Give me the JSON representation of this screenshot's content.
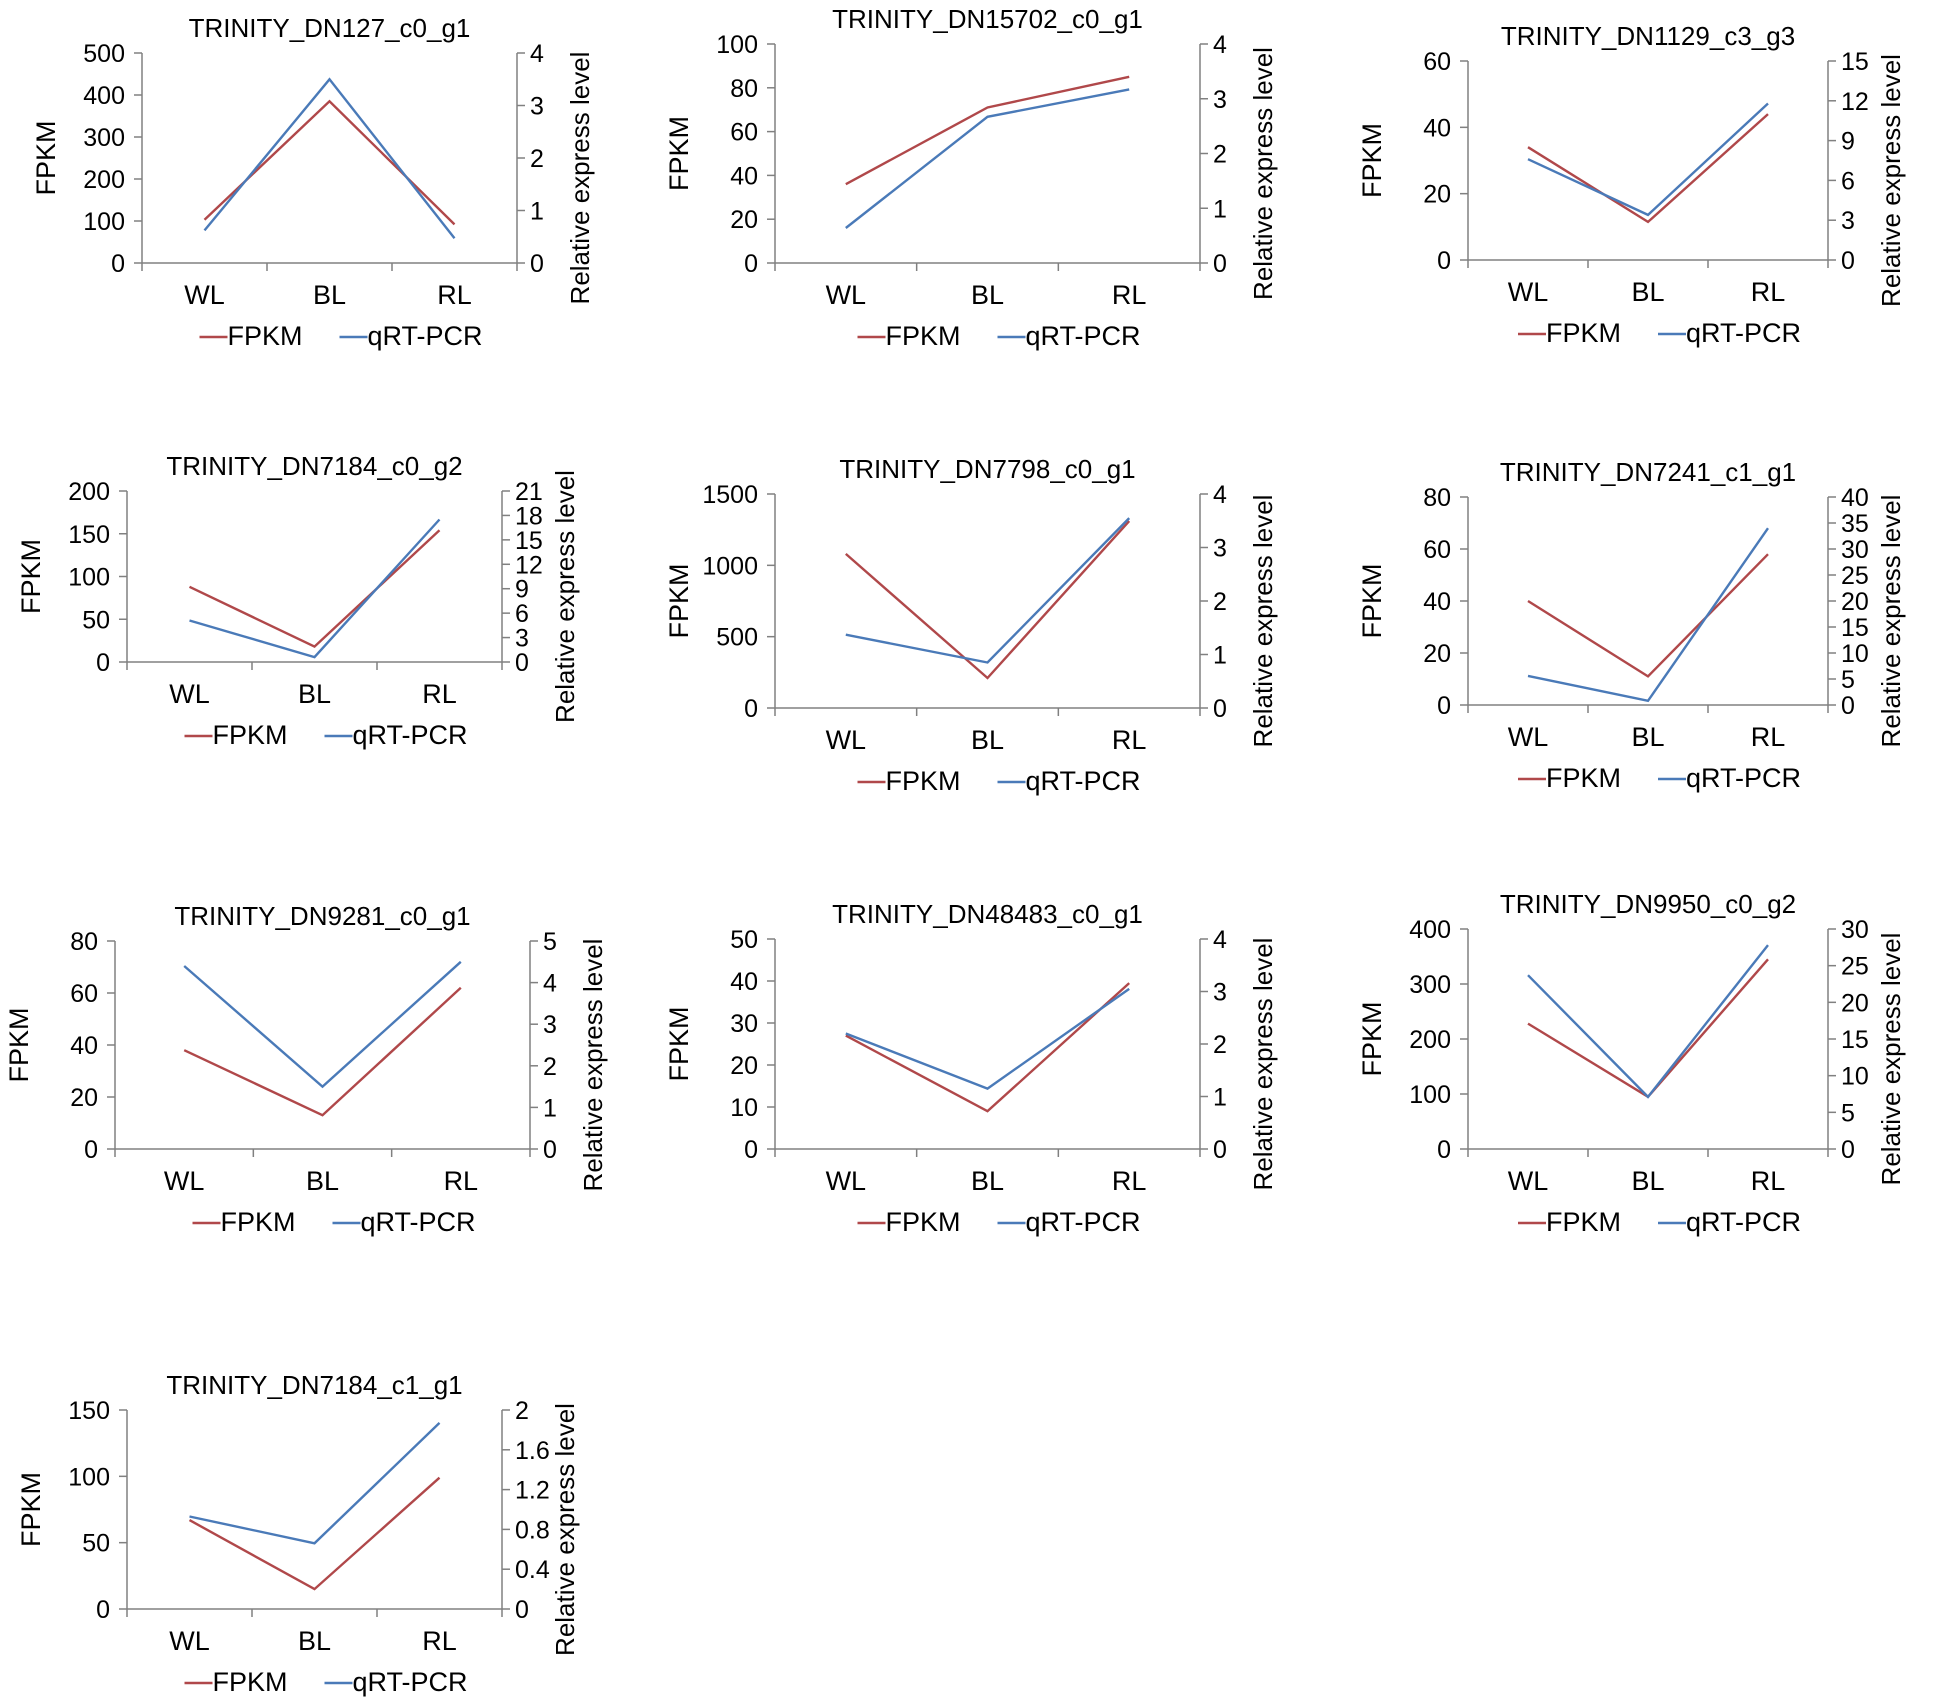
{
  "figure": {
    "colors": {
      "fpkm": "#B0484A",
      "qrt": "#4A7AB8",
      "axis": "#808080",
      "text": "#000000"
    }
  },
  "chart_data": [
    {
      "type": "line",
      "title": "TRINITY_DN127_c0_g1",
      "categories": [
        "WL",
        "BL",
        "RL"
      ],
      "ylabel": "FPKM",
      "y2label": "Relative express level",
      "ylim": [
        0,
        500
      ],
      "yticks": [
        0,
        100,
        200,
        300,
        400,
        500
      ],
      "y2lim": [
        0,
        4
      ],
      "y2ticks": [
        0,
        1,
        2,
        3,
        4
      ],
      "series": [
        {
          "name": "FPKM",
          "axis": "left",
          "values": [
            103,
            385,
            92
          ]
        },
        {
          "name": "qRT-PCR",
          "axis": "right",
          "values": [
            0.62,
            3.5,
            0.47
          ]
        }
      ]
    },
    {
      "type": "line",
      "title": "TRINITY_DN15702_c0_g1",
      "categories": [
        "WL",
        "BL",
        "RL"
      ],
      "ylabel": "FPKM",
      "y2label": "Relative express level",
      "ylim": [
        0,
        100
      ],
      "yticks": [
        0,
        20,
        40,
        60,
        80,
        100
      ],
      "y2lim": [
        0,
        4
      ],
      "y2ticks": [
        0,
        1,
        2,
        3,
        4
      ],
      "series": [
        {
          "name": "FPKM",
          "axis": "left",
          "values": [
            36,
            71,
            85
          ]
        },
        {
          "name": "qRT-PCR",
          "axis": "right",
          "values": [
            0.64,
            2.67,
            3.17
          ]
        }
      ]
    },
    {
      "type": "line",
      "title": "TRINITY_DN1129_c3_g3",
      "categories": [
        "WL",
        "BL",
        "RL"
      ],
      "ylabel": "FPKM",
      "y2label": "Relative express level",
      "ylim": [
        0,
        60
      ],
      "yticks": [
        0,
        20,
        40,
        60
      ],
      "y2lim": [
        0,
        15
      ],
      "y2ticks": [
        0,
        3,
        6,
        9,
        12,
        15
      ],
      "series": [
        {
          "name": "FPKM",
          "axis": "left",
          "values": [
            34,
            11.5,
            44
          ]
        },
        {
          "name": "qRT-PCR",
          "axis": "right",
          "values": [
            7.6,
            3.4,
            11.8
          ]
        }
      ]
    },
    {
      "type": "line",
      "title": "TRINITY_DN7184_c0_g2",
      "categories": [
        "WL",
        "BL",
        "RL"
      ],
      "ylabel": "FPKM",
      "y2label": "Relative express level",
      "ylim": [
        0,
        200
      ],
      "yticks": [
        0,
        50,
        100,
        150,
        200
      ],
      "y2lim": [
        0,
        21
      ],
      "y2ticks": [
        0,
        3,
        6,
        9,
        12,
        15,
        18,
        21
      ],
      "series": [
        {
          "name": "FPKM",
          "axis": "left",
          "values": [
            88,
            18,
            154
          ]
        },
        {
          "name": "qRT-PCR",
          "axis": "right",
          "values": [
            5.1,
            0.6,
            17.5
          ]
        }
      ]
    },
    {
      "type": "line",
      "title": "TRINITY_DN7798_c0_g1",
      "categories": [
        "WL",
        "BL",
        "RL"
      ],
      "ylabel": "FPKM",
      "y2label": "Relative express level",
      "ylim": [
        0,
        1500
      ],
      "yticks": [
        0,
        500,
        1000,
        1500
      ],
      "y2lim": [
        0,
        4
      ],
      "y2ticks": [
        0,
        1,
        2,
        3,
        4
      ],
      "series": [
        {
          "name": "FPKM",
          "axis": "left",
          "values": [
            1080,
            210,
            1310
          ]
        },
        {
          "name": "qRT-PCR",
          "axis": "right",
          "values": [
            1.37,
            0.85,
            3.55
          ]
        }
      ]
    },
    {
      "type": "line",
      "title": "TRINITY_DN7241_c1_g1",
      "categories": [
        "WL",
        "BL",
        "RL"
      ],
      "ylabel": "FPKM",
      "y2label": "Relative express level",
      "ylim": [
        0,
        80
      ],
      "yticks": [
        0,
        20,
        40,
        60,
        80
      ],
      "y2lim": [
        0,
        40
      ],
      "y2ticks": [
        0,
        5,
        10,
        15,
        20,
        25,
        30,
        35,
        40
      ],
      "series": [
        {
          "name": "FPKM",
          "axis": "left",
          "values": [
            40,
            11,
            58
          ]
        },
        {
          "name": "qRT-PCR",
          "axis": "right",
          "values": [
            5.6,
            0.8,
            34
          ]
        }
      ]
    },
    {
      "type": "line",
      "title": "TRINITY_DN9281_c0_g1",
      "categories": [
        "WL",
        "BL",
        "RL"
      ],
      "ylabel": "FPKM",
      "y2label": "Relative express level",
      "ylim": [
        0,
        80
      ],
      "yticks": [
        0,
        20,
        40,
        60,
        80
      ],
      "y2lim": [
        0,
        5
      ],
      "y2ticks": [
        0,
        1,
        2,
        3,
        4,
        5
      ],
      "series": [
        {
          "name": "FPKM",
          "axis": "left",
          "values": [
            38,
            13,
            62
          ]
        },
        {
          "name": "qRT-PCR",
          "axis": "right",
          "values": [
            4.4,
            1.5,
            4.5
          ]
        }
      ]
    },
    {
      "type": "line",
      "title": "TRINITY_DN48483_c0_g1",
      "categories": [
        "WL",
        "BL",
        "RL"
      ],
      "ylabel": "FPKM",
      "y2label": "Relative express level",
      "ylim": [
        0,
        50
      ],
      "yticks": [
        0,
        10,
        20,
        30,
        40,
        50
      ],
      "y2lim": [
        0,
        4
      ],
      "y2ticks": [
        0,
        1,
        2,
        3,
        4
      ],
      "series": [
        {
          "name": "FPKM",
          "axis": "left",
          "values": [
            27,
            9,
            39.5
          ]
        },
        {
          "name": "qRT-PCR",
          "axis": "right",
          "values": [
            2.2,
            1.15,
            3.05
          ]
        }
      ]
    },
    {
      "type": "line",
      "title": "TRINITY_DN9950_c0_g2",
      "categories": [
        "WL",
        "BL",
        "RL"
      ],
      "ylabel": "FPKM",
      "y2label": "Relative express level",
      "ylim": [
        0,
        400
      ],
      "yticks": [
        0,
        100,
        200,
        300,
        400
      ],
      "y2lim": [
        0,
        30
      ],
      "y2ticks": [
        0,
        5,
        10,
        15,
        20,
        25,
        30
      ],
      "series": [
        {
          "name": "FPKM",
          "axis": "left",
          "values": [
            228,
            95,
            345
          ]
        },
        {
          "name": "qRT-PCR",
          "axis": "right",
          "values": [
            23.7,
            7.1,
            27.8
          ]
        }
      ]
    },
    {
      "type": "line",
      "title": "TRINITY_DN7184_c1_g1",
      "categories": [
        "WL",
        "BL",
        "RL"
      ],
      "ylabel": "FPKM",
      "y2label": "Relative express level",
      "ylim": [
        0,
        150
      ],
      "yticks": [
        0,
        50,
        100,
        150
      ],
      "y2lim": [
        0,
        2
      ],
      "y2ticks": [
        "0",
        "0.4",
        "0.8",
        "1.2",
        "1.6",
        "2"
      ],
      "series": [
        {
          "name": "FPKM",
          "axis": "left",
          "values": [
            67,
            15,
            99
          ]
        },
        {
          "name": "qRT-PCR",
          "axis": "right",
          "values": [
            0.93,
            0.66,
            1.87
          ]
        }
      ]
    }
  ]
}
